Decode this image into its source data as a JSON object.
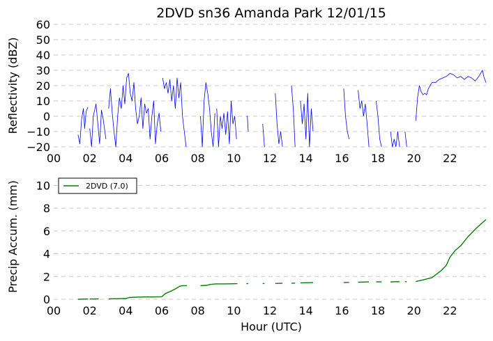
{
  "chart_data": [
    {
      "type": "line",
      "title": "2DVD sn36 Amanda Park 12/01/15",
      "xlabel": "",
      "ylabel": "Reflectivity (dBZ)",
      "xlim": [
        0,
        24
      ],
      "ylim": [
        -20,
        60
      ],
      "xticks": [
        0,
        2,
        4,
        6,
        8,
        10,
        12,
        14,
        16,
        18,
        20,
        22
      ],
      "xtick_labels": [
        "00",
        "02",
        "04",
        "06",
        "08",
        "10",
        "12",
        "14",
        "16",
        "18",
        "20",
        "22"
      ],
      "yticks": [
        -20,
        -10,
        0,
        10,
        20,
        30,
        40,
        50,
        60
      ],
      "ytick_labels": [
        "−20",
        "−10",
        "0",
        "10",
        "20",
        "30",
        "40",
        "50",
        "60"
      ],
      "grid": "horizontal dashed",
      "color": "#0000ff",
      "segments": [
        {
          "x": [
            1.35,
            1.45,
            1.55,
            1.65,
            1.72,
            1.8,
            1.9
          ],
          "y": [
            -12,
            -18,
            -2,
            5,
            -8,
            3,
            6
          ]
        },
        {
          "x": [
            2.0,
            2.1,
            2.2,
            2.35,
            2.45,
            2.55,
            2.65,
            2.75,
            2.9
          ],
          "y": [
            -8,
            -20,
            0,
            8,
            -5,
            -18,
            4,
            -2,
            -15
          ]
        },
        {
          "x": [
            3.05,
            3.15,
            3.25,
            3.35,
            3.45,
            3.55,
            3.65,
            3.75,
            3.85,
            3.95,
            4.05,
            4.15,
            4.25,
            4.35,
            4.45,
            4.55,
            4.65,
            4.75,
            4.85,
            4.95,
            5.05,
            5.15,
            5.25,
            5.35,
            5.45,
            5.55,
            5.65,
            5.75,
            5.85,
            5.95
          ],
          "y": [
            5,
            18,
            2,
            -10,
            -20,
            0,
            12,
            5,
            20,
            8,
            25,
            28,
            15,
            10,
            22,
            5,
            -5,
            0,
            12,
            -8,
            8,
            2,
            5,
            -15,
            0,
            10,
            -18,
            -5,
            2,
            -10
          ]
        },
        {
          "x": [
            6.05,
            6.15,
            6.25,
            6.35,
            6.45,
            6.55,
            6.65,
            6.75,
            6.85,
            6.95,
            7.05,
            7.15,
            7.25,
            7.35
          ],
          "y": [
            25,
            18,
            22,
            15,
            24,
            10,
            20,
            5,
            25,
            12,
            22,
            0,
            -10,
            -20
          ]
        },
        {
          "x": [
            8.15,
            8.25,
            8.35,
            8.45,
            8.55,
            8.65,
            8.75,
            8.85,
            8.95
          ],
          "y": [
            0,
            -20,
            10,
            22,
            15,
            5,
            -10,
            -20,
            2
          ]
        },
        {
          "x": [
            9.05,
            9.15,
            9.25,
            9.35,
            9.45,
            9.55,
            9.65,
            9.75,
            9.85,
            9.95,
            10.05,
            10.15
          ],
          "y": [
            5,
            -20,
            0,
            -8,
            2,
            -12,
            3,
            -18,
            10,
            -5,
            0,
            -15
          ]
        },
        {
          "x": [
            10.7,
            10.75,
            10.8
          ],
          "y": [
            0,
            0,
            -10
          ]
        },
        {
          "x": [
            11.6,
            11.7
          ],
          "y": [
            -5,
            -20
          ]
        },
        {
          "x": [
            12.3,
            12.4,
            12.5,
            12.6,
            12.7
          ],
          "y": [
            15,
            -5,
            -18,
            -10,
            -20
          ]
        },
        {
          "x": [
            13.2,
            13.3,
            13.4
          ],
          "y": [
            20,
            5,
            -20
          ]
        },
        {
          "x": [
            13.7,
            13.8,
            13.9,
            14.0,
            14.1,
            14.2,
            14.3,
            14.4
          ],
          "y": [
            10,
            -5,
            8,
            -15,
            15,
            -20,
            5,
            -10
          ]
        },
        {
          "x": [
            16.1,
            16.2,
            16.3,
            16.4
          ],
          "y": [
            18,
            0,
            -10,
            -15
          ]
        },
        {
          "x": [
            16.9,
            17.0,
            17.1,
            17.2,
            17.3,
            17.4,
            17.5
          ],
          "y": [
            17,
            5,
            10,
            0,
            8,
            -5,
            -20
          ]
        },
        {
          "x": [
            17.9,
            18.0,
            18.1,
            18.2
          ],
          "y": [
            10,
            0,
            -15,
            -20
          ]
        },
        {
          "x": [
            18.7,
            18.8,
            18.9,
            19.0,
            19.1,
            19.2
          ],
          "y": [
            -10,
            -20,
            -15,
            -20,
            -10,
            -20
          ]
        },
        {
          "x": [
            19.5,
            19.6
          ],
          "y": [
            -10,
            -20
          ]
        },
        {
          "x": [
            20.1,
            20.2,
            20.3,
            20.4,
            20.5,
            20.6,
            20.7,
            20.8,
            20.9,
            21.0,
            21.2,
            21.4,
            21.6,
            21.8,
            22.0,
            22.2,
            22.4,
            22.6,
            22.8,
            23.0,
            23.2,
            23.4,
            23.6,
            23.8,
            23.9,
            24.0
          ],
          "y": [
            -3,
            12,
            20,
            16,
            14,
            15,
            14,
            18,
            20,
            22,
            22,
            24,
            25,
            26,
            28,
            27,
            25,
            26,
            24,
            26,
            25,
            23,
            26,
            30,
            25,
            22
          ]
        }
      ]
    },
    {
      "type": "line",
      "title": "",
      "xlabel": "Hour (UTC)",
      "ylabel": "Precip Accum. (mm)",
      "xlim": [
        0,
        24
      ],
      "ylim": [
        0,
        11
      ],
      "xticks": [
        0,
        2,
        4,
        6,
        8,
        10,
        12,
        14,
        16,
        18,
        20,
        22
      ],
      "xtick_labels": [
        "00",
        "02",
        "04",
        "06",
        "08",
        "10",
        "12",
        "14",
        "16",
        "18",
        "20",
        "22"
      ],
      "yticks": [
        0,
        2,
        4,
        6,
        8,
        10
      ],
      "ytick_labels": [
        "0",
        "2",
        "4",
        "6",
        "8",
        "10"
      ],
      "grid": "horizontal dashed",
      "legend": {
        "position": "top-left",
        "entries": [
          {
            "name": "2DVD (7.0)",
            "color": "#008000"
          }
        ]
      },
      "series": [
        {
          "name": "2DVD (7.0)",
          "color": "#008000",
          "segments": [
            {
              "x": [
                1.35,
                1.9
              ],
              "y": [
                0.0,
                0.02
              ]
            },
            {
              "x": [
                2.0,
                2.5
              ],
              "y": [
                0.02,
                0.03
              ]
            },
            {
              "x": [
                3.05,
                3.5,
                4.0,
                4.2,
                4.5,
                5.0,
                5.5,
                6.0,
                6.2,
                6.5,
                6.8,
                7.0,
                7.2,
                7.4
              ],
              "y": [
                0.03,
                0.05,
                0.06,
                0.15,
                0.18,
                0.2,
                0.2,
                0.22,
                0.5,
                0.7,
                0.95,
                1.15,
                1.2,
                1.2
              ]
            },
            {
              "x": [
                8.15,
                8.5,
                8.7,
                9.0,
                9.5,
                10.0,
                10.2
              ],
              "y": [
                1.2,
                1.22,
                1.3,
                1.35,
                1.35,
                1.36,
                1.37
              ]
            },
            {
              "x": [
                10.7,
                10.8
              ],
              "y": [
                1.37,
                1.38
              ]
            },
            {
              "x": [
                11.6,
                11.7
              ],
              "y": [
                1.38,
                1.38
              ]
            },
            {
              "x": [
                12.3,
                12.7
              ],
              "y": [
                1.39,
                1.4
              ]
            },
            {
              "x": [
                13.2,
                13.4
              ],
              "y": [
                1.4,
                1.42
              ]
            },
            {
              "x": [
                13.7,
                14.4
              ],
              "y": [
                1.44,
                1.46
              ]
            },
            {
              "x": [
                16.1,
                16.4
              ],
              "y": [
                1.47,
                1.48
              ]
            },
            {
              "x": [
                16.9,
                17.5
              ],
              "y": [
                1.5,
                1.52
              ]
            },
            {
              "x": [
                17.9,
                18.2
              ],
              "y": [
                1.53,
                1.53
              ]
            },
            {
              "x": [
                18.7,
                19.2
              ],
              "y": [
                1.53,
                1.54
              ]
            },
            {
              "x": [
                19.5,
                19.6
              ],
              "y": [
                1.54,
                1.54
              ]
            },
            {
              "x": [
                20.1,
                20.5,
                21.0,
                21.5,
                21.8,
                22.0,
                22.3,
                22.6,
                23.0,
                23.5,
                24.0
              ],
              "y": [
                1.55,
                1.7,
                1.9,
                2.5,
                3.0,
                3.7,
                4.3,
                4.7,
                5.5,
                6.3,
                7.0
              ]
            }
          ]
        }
      ]
    }
  ]
}
